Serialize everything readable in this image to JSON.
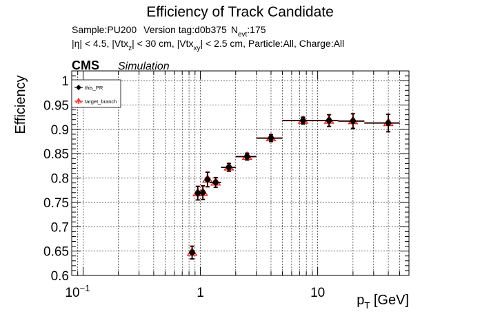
{
  "chart_data": {
    "type": "scatter",
    "title": "Efficiency of Track Candidate",
    "info": {
      "sample": "Sample:PU200",
      "version": "Version tag:d0b375",
      "nevt_N": "N",
      "nevt_sub": "evt",
      "nevt_value": ":175"
    },
    "cuts": {
      "p1": "|η| < 4.5, |Vtx",
      "s1": "z",
      "p2": "| < 30 cm, |Vtx",
      "s2": "xy",
      "p3": "| < 2.5 cm, Particle:All, Charge:All"
    },
    "cms_label": "CMS",
    "cms_sublabel": "Simulation",
    "ylabel": "Efficiency",
    "xlabel_main": "p",
    "xlabel_sub": "T",
    "xlabel_unit": " [GeV]",
    "xscale": "log",
    "xlim": [
      0.08,
      60
    ],
    "ylim": [
      0.6,
      1.02
    ],
    "grid": true,
    "legend_position": "top-left",
    "yticks": [
      "0.6",
      "0.65",
      "0.7",
      "0.75",
      "0.8",
      "0.85",
      "0.9",
      "0.95",
      "1"
    ],
    "yticks_values": [
      0.6,
      0.65,
      0.7,
      0.75,
      0.8,
      0.85,
      0.9,
      0.95,
      1.0
    ],
    "xticks_values": [
      0.1,
      1,
      10
    ],
    "xtick_labels": [
      {
        "base": "10",
        "exp": "−1"
      },
      {
        "base": "1",
        "exp": ""
      },
      {
        "base": "10",
        "exp": ""
      }
    ],
    "series": [
      {
        "name": "this_PR",
        "color": "#000000",
        "marker": "circle",
        "points": [
          {
            "x": 0.85,
            "xlo": 0.8,
            "xhi": 0.9,
            "y": 0.647,
            "err": 0.013
          },
          {
            "x": 0.95,
            "xlo": 0.9,
            "xhi": 1.0,
            "y": 0.769,
            "err": 0.014
          },
          {
            "x": 1.05,
            "xlo": 1.0,
            "xhi": 1.1,
            "y": 0.77,
            "err": 0.014
          },
          {
            "x": 1.15,
            "xlo": 1.1,
            "xhi": 1.2,
            "y": 0.797,
            "err": 0.015
          },
          {
            "x": 1.35,
            "xlo": 1.2,
            "xhi": 1.5,
            "y": 0.791,
            "err": 0.01
          },
          {
            "x": 1.75,
            "xlo": 1.5,
            "xhi": 2.0,
            "y": 0.822,
            "err": 0.008
          },
          {
            "x": 2.5,
            "xlo": 2.0,
            "xhi": 3.0,
            "y": 0.844,
            "err": 0.007
          },
          {
            "x": 4.0,
            "xlo": 3.0,
            "xhi": 5.0,
            "y": 0.882,
            "err": 0.007
          },
          {
            "x": 7.5,
            "xlo": 5.0,
            "xhi": 10.0,
            "y": 0.918,
            "err": 0.007
          },
          {
            "x": 12.5,
            "xlo": 10.0,
            "xhi": 15.0,
            "y": 0.918,
            "err": 0.012
          },
          {
            "x": 20.0,
            "xlo": 15.0,
            "xhi": 25.0,
            "y": 0.917,
            "err": 0.015
          },
          {
            "x": 40.0,
            "xlo": 25.0,
            "xhi": 50.0,
            "y": 0.913,
            "err": 0.018
          }
        ]
      },
      {
        "name": "target_branch",
        "color": "#e8201a",
        "marker": "triangle",
        "points": [
          {
            "x": 0.85,
            "xlo": 0.8,
            "xhi": 0.9,
            "y": 0.647,
            "err": 0.013
          },
          {
            "x": 0.95,
            "xlo": 0.9,
            "xhi": 1.0,
            "y": 0.769,
            "err": 0.014
          },
          {
            "x": 1.05,
            "xlo": 1.0,
            "xhi": 1.1,
            "y": 0.77,
            "err": 0.014
          },
          {
            "x": 1.15,
            "xlo": 1.1,
            "xhi": 1.2,
            "y": 0.797,
            "err": 0.015
          },
          {
            "x": 1.35,
            "xlo": 1.2,
            "xhi": 1.5,
            "y": 0.791,
            "err": 0.01
          },
          {
            "x": 1.75,
            "xlo": 1.5,
            "xhi": 2.0,
            "y": 0.822,
            "err": 0.008
          },
          {
            "x": 2.5,
            "xlo": 2.0,
            "xhi": 3.0,
            "y": 0.844,
            "err": 0.007
          },
          {
            "x": 4.0,
            "xlo": 3.0,
            "xhi": 5.0,
            "y": 0.882,
            "err": 0.007
          },
          {
            "x": 7.5,
            "xlo": 5.0,
            "xhi": 10.0,
            "y": 0.918,
            "err": 0.007
          },
          {
            "x": 12.5,
            "xlo": 10.0,
            "xhi": 15.0,
            "y": 0.918,
            "err": 0.012
          },
          {
            "x": 20.0,
            "xlo": 15.0,
            "xhi": 25.0,
            "y": 0.917,
            "err": 0.015
          },
          {
            "x": 40.0,
            "xlo": 25.0,
            "xhi": 50.0,
            "y": 0.913,
            "err": 0.018
          }
        ]
      }
    ]
  }
}
